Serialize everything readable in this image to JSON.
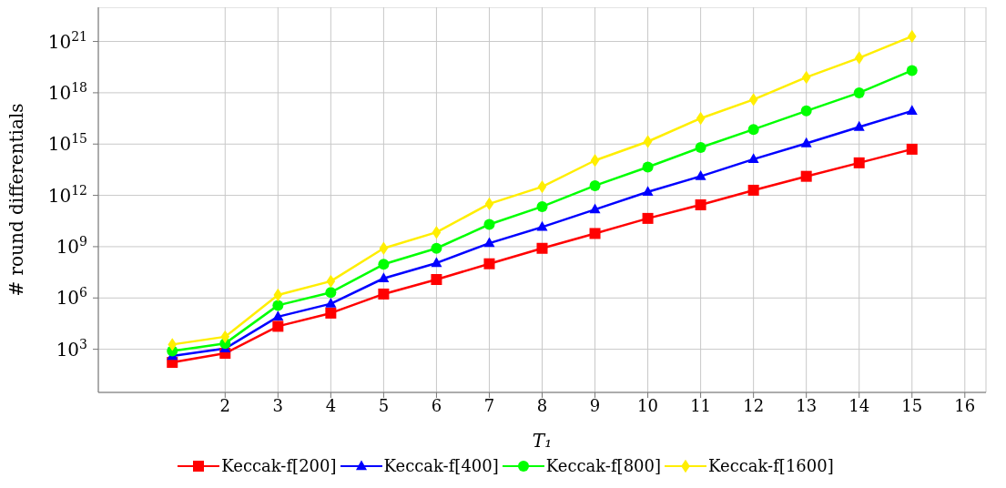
{
  "chart_data": {
    "type": "line",
    "xlabel": "T₁",
    "ylabel": "# round differentials",
    "log": "y",
    "grid": true,
    "legend": "bottom",
    "line_style": "solid",
    "x": [
      1,
      2,
      3,
      4,
      5,
      6,
      7,
      8,
      9,
      10,
      11,
      12,
      13,
      14,
      15
    ],
    "xlim": [
      -0.4,
      16.4
    ],
    "xticks": [
      2,
      3,
      4,
      5,
      6,
      7,
      8,
      9,
      10,
      11,
      12,
      13,
      14,
      15,
      16
    ],
    "ylim": [
      3,
      1e+23
    ],
    "yticks": [
      {
        "value": 1000.0,
        "label": "10$^{3}$"
      },
      {
        "value": 1000000.0,
        "label": "10$^{6}$"
      },
      {
        "value": 1000000000.0,
        "label": "10$^{9}$"
      },
      {
        "value": 1000000000000.0,
        "label": "10$^{12}$"
      },
      {
        "value": 1000000000000000.0,
        "label": "10$^{15}$"
      },
      {
        "value": 1e+18,
        "label": "10$^{18}$"
      },
      {
        "value": 1e+21,
        "label": "10$^{21}$"
      }
    ],
    "series": [
      {
        "name": "Keccak-f[200]",
        "color": "#ff0000",
        "marker": "square",
        "values": [
          170,
          580,
          22000.0,
          130000.0,
          1700000.0,
          12000000.0,
          100000000.0,
          800000000.0,
          5900000000.0,
          45000000000.0,
          280000000000.0,
          2000000000000.0,
          13000000000000.0,
          80000000000000.0,
          500000000000000.0
        ]
      },
      {
        "name": "Keccak-f[400]",
        "color": "#0000ff",
        "marker": "triangle",
        "values": [
          400,
          1100,
          80000.0,
          460000.0,
          14000000.0,
          110000000.0,
          1600000000.0,
          14000000000.0,
          150000000000.0,
          1600000000000.0,
          13000000000000.0,
          130000000000000.0,
          1100000000000000.0,
          1e+16,
          8.7e+16
        ]
      },
      {
        "name": "Keccak-f[800]",
        "color": "#00ff00",
        "marker": "circle",
        "values": [
          800,
          2200,
          370000.0,
          2100000.0,
          93000000.0,
          800000000.0,
          20000000000.0,
          220000000000.0,
          3700000000000.0,
          45000000000000.0,
          630000000000000.0,
          7200000000000000.0,
          8.7e+16,
          1e+18,
          2e+19
        ]
      },
      {
        "name": "Keccak-f[1600]",
        "color": "#ffee00",
        "marker": "diamond",
        "values": [
          1900,
          5400,
          1500000.0,
          9500000.0,
          800000000.0,
          6900000000.0,
          320000000000.0,
          3200000000000.0,
          110000000000000.0,
          1400000000000000.0,
          3.2e+16,
          4e+17,
          8e+18,
          1.1e+20,
          2e+21
        ]
      }
    ]
  }
}
